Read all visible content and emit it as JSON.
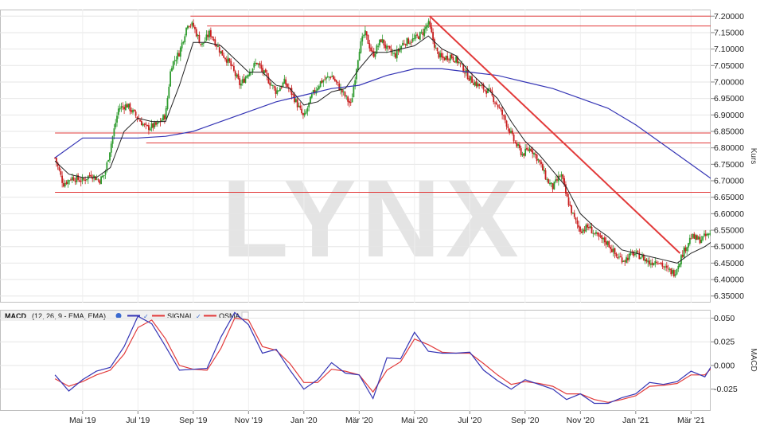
{
  "chart_data": [
    {
      "type": "candlestick",
      "watermark": "LYNX",
      "ylabel": "Kurs",
      "ylim": [
        6.33,
        7.22
      ],
      "yticks": [
        "7.20000",
        "7.15000",
        "7.10000",
        "7.05000",
        "7.00000",
        "6.95000",
        "6.90000",
        "6.85000",
        "6.80000",
        "6.75000",
        "6.70000",
        "6.65000",
        "6.60000",
        "6.55000",
        "6.50000",
        "6.45000",
        "6.40000",
        "6.35000"
      ],
      "x_months": [
        {
          "label": "Mai '19",
          "month": 1
        },
        {
          "label": "Jul '19",
          "month": 3
        },
        {
          "label": "Sep '19",
          "month": 5
        },
        {
          "label": "Nov '19",
          "month": 7
        },
        {
          "label": "Jan '20",
          "month": 9
        },
        {
          "label": "Mär '20",
          "month": 11
        },
        {
          "label": "Mai '20",
          "month": 13
        },
        {
          "label": "Jul '20",
          "month": 15
        },
        {
          "label": "Sep '20",
          "month": 17
        },
        {
          "label": "Nov '20",
          "month": 19
        },
        {
          "label": "Jan '21",
          "month": 21
        },
        {
          "label": "Mär '21",
          "month": 23
        }
      ],
      "colors": {
        "up": "#2e9b2e",
        "down": "#c81e1e",
        "ma_long": "#3535b5",
        "ma_short": "#222222",
        "level": "#e23a3a"
      },
      "price_path": [
        [
          0.0,
          6.77
        ],
        [
          0.3,
          6.69
        ],
        [
          0.6,
          6.71
        ],
        [
          1.0,
          6.7
        ],
        [
          1.3,
          6.72
        ],
        [
          1.6,
          6.7
        ],
        [
          1.8,
          6.72
        ],
        [
          2.0,
          6.8
        ],
        [
          2.3,
          6.92
        ],
        [
          2.6,
          6.93
        ],
        [
          3.0,
          6.89
        ],
        [
          3.3,
          6.86
        ],
        [
          3.7,
          6.87
        ],
        [
          4.0,
          6.9
        ],
        [
          4.2,
          7.05
        ],
        [
          4.5,
          7.09
        ],
        [
          4.8,
          7.18
        ],
        [
          5.0,
          7.17
        ],
        [
          5.3,
          7.11
        ],
        [
          5.6,
          7.15
        ],
        [
          6.0,
          7.09
        ],
        [
          6.3,
          7.06
        ],
        [
          6.7,
          6.99
        ],
        [
          7.0,
          7.03
        ],
        [
          7.3,
          7.06
        ],
        [
          7.6,
          7.02
        ],
        [
          8.0,
          6.97
        ],
        [
          8.3,
          7.0
        ],
        [
          8.6,
          6.96
        ],
        [
          9.0,
          6.89
        ],
        [
          9.3,
          6.96
        ],
        [
          9.6,
          7.0
        ],
        [
          10.0,
          7.02
        ],
        [
          10.3,
          6.98
        ],
        [
          10.7,
          6.93
        ],
        [
          11.0,
          7.1
        ],
        [
          11.2,
          7.15
        ],
        [
          11.5,
          7.08
        ],
        [
          11.8,
          7.13
        ],
        [
          12.0,
          7.1
        ],
        [
          12.3,
          7.08
        ],
        [
          12.6,
          7.12
        ],
        [
          13.0,
          7.13
        ],
        [
          13.3,
          7.15
        ],
        [
          13.5,
          7.18
        ],
        [
          13.8,
          7.09
        ],
        [
          14.0,
          7.07
        ],
        [
          14.3,
          7.08
        ],
        [
          14.6,
          7.06
        ],
        [
          15.0,
          7.01
        ],
        [
          15.3,
          6.99
        ],
        [
          15.7,
          6.97
        ],
        [
          16.0,
          6.93
        ],
        [
          16.3,
          6.88
        ],
        [
          16.6,
          6.82
        ],
        [
          16.9,
          6.78
        ],
        [
          17.2,
          6.8
        ],
        [
          17.5,
          6.76
        ],
        [
          17.8,
          6.7
        ],
        [
          18.0,
          6.68
        ],
        [
          18.3,
          6.72
        ],
        [
          18.5,
          6.65
        ],
        [
          18.8,
          6.58
        ],
        [
          19.0,
          6.55
        ],
        [
          19.3,
          6.56
        ],
        [
          19.6,
          6.53
        ],
        [
          20.0,
          6.51
        ],
        [
          20.3,
          6.47
        ],
        [
          20.6,
          6.46
        ],
        [
          20.9,
          6.48
        ],
        [
          21.2,
          6.47
        ],
        [
          21.5,
          6.45
        ],
        [
          21.8,
          6.46
        ],
        [
          22.1,
          6.43
        ],
        [
          22.4,
          6.42
        ],
        [
          22.7,
          6.48
        ],
        [
          23.0,
          6.53
        ],
        [
          23.3,
          6.52
        ],
        [
          23.7,
          6.54
        ],
        [
          24.0,
          6.57
        ]
      ],
      "ma_long_path": [
        [
          0.0,
          6.77
        ],
        [
          1.0,
          6.83
        ],
        [
          2.0,
          6.83
        ],
        [
          3.0,
          6.83
        ],
        [
          4.0,
          6.835
        ],
        [
          5.0,
          6.85
        ],
        [
          6.0,
          6.88
        ],
        [
          7.0,
          6.91
        ],
        [
          8.0,
          6.94
        ],
        [
          9.0,
          6.96
        ],
        [
          10.0,
          6.98
        ],
        [
          11.0,
          6.99
        ],
        [
          12.0,
          7.02
        ],
        [
          13.0,
          7.04
        ],
        [
          14.0,
          7.04
        ],
        [
          15.0,
          7.03
        ],
        [
          16.0,
          7.02
        ],
        [
          17.0,
          7.0
        ],
        [
          18.0,
          6.98
        ],
        [
          19.0,
          6.95
        ],
        [
          20.0,
          6.92
        ],
        [
          21.0,
          6.87
        ],
        [
          22.0,
          6.81
        ],
        [
          23.0,
          6.75
        ],
        [
          24.0,
          6.69
        ]
      ],
      "ma_short_path": [
        [
          0.0,
          6.76
        ],
        [
          0.5,
          6.72
        ],
        [
          1.0,
          6.71
        ],
        [
          1.5,
          6.71
        ],
        [
          2.0,
          6.74
        ],
        [
          2.5,
          6.85
        ],
        [
          3.0,
          6.89
        ],
        [
          3.5,
          6.88
        ],
        [
          4.0,
          6.88
        ],
        [
          4.5,
          6.99
        ],
        [
          5.0,
          7.12
        ],
        [
          5.5,
          7.12
        ],
        [
          6.0,
          7.11
        ],
        [
          6.5,
          7.07
        ],
        [
          7.0,
          7.03
        ],
        [
          7.5,
          7.03
        ],
        [
          8.0,
          6.99
        ],
        [
          8.5,
          6.98
        ],
        [
          9.0,
          6.93
        ],
        [
          9.5,
          6.94
        ],
        [
          10.0,
          6.97
        ],
        [
          10.5,
          6.98
        ],
        [
          11.0,
          7.04
        ],
        [
          11.5,
          7.09
        ],
        [
          12.0,
          7.09
        ],
        [
          12.5,
          7.1
        ],
        [
          13.0,
          7.11
        ],
        [
          13.5,
          7.14
        ],
        [
          14.0,
          7.1
        ],
        [
          14.5,
          7.08
        ],
        [
          15.0,
          7.03
        ],
        [
          15.5,
          6.99
        ],
        [
          16.0,
          6.95
        ],
        [
          16.5,
          6.88
        ],
        [
          17.0,
          6.82
        ],
        [
          17.5,
          6.78
        ],
        [
          18.0,
          6.73
        ],
        [
          18.5,
          6.68
        ],
        [
          19.0,
          6.6
        ],
        [
          19.5,
          6.56
        ],
        [
          20.0,
          6.53
        ],
        [
          20.5,
          6.49
        ],
        [
          21.0,
          6.48
        ],
        [
          21.5,
          6.47
        ],
        [
          22.0,
          6.46
        ],
        [
          22.5,
          6.45
        ],
        [
          23.0,
          6.48
        ],
        [
          23.5,
          6.5
        ],
        [
          24.0,
          6.53
        ]
      ],
      "horizontal_levels": [
        {
          "y": 7.2,
          "x_start": 4.9,
          "x_end": 26.5
        },
        {
          "y": 7.17,
          "x_start": 5.5,
          "x_end": 26.5
        },
        {
          "y": 6.845,
          "x_start": 0,
          "x_end": 26.5
        },
        {
          "y": 6.815,
          "x_start": 3.3,
          "x_end": 26.5
        },
        {
          "y": 6.665,
          "x_start": 0,
          "x_end": 26.5
        }
      ],
      "trendline": {
        "x_start": 13.55,
        "y_start": 7.2,
        "x_end": 22.6,
        "y_end": 6.48
      }
    },
    {
      "type": "line",
      "legend_label": "MACD",
      "legend_params": "(12, 26, 9 - EMA, EMA)",
      "series_labels": [
        "SIGNAL",
        "OSMA"
      ],
      "ylabel": "MACD",
      "ylim": [
        -0.048,
        0.058
      ],
      "yticks": [
        "0.050",
        "0.025",
        "0.000",
        "-0.025"
      ],
      "colors": {
        "macd": "#3535b5",
        "signal": "#e23a3a"
      },
      "macd_path": [
        [
          0.0,
          -0.01
        ],
        [
          0.5,
          -0.027
        ],
        [
          1.0,
          -0.015
        ],
        [
          1.5,
          -0.006
        ],
        [
          2.0,
          -0.002
        ],
        [
          2.5,
          0.02
        ],
        [
          3.0,
          0.052
        ],
        [
          3.5,
          0.044
        ],
        [
          4.0,
          0.02
        ],
        [
          4.5,
          -0.005
        ],
        [
          5.0,
          -0.004
        ],
        [
          5.5,
          -0.003
        ],
        [
          6.0,
          0.03
        ],
        [
          6.5,
          0.056
        ],
        [
          7.0,
          0.043
        ],
        [
          7.5,
          0.013
        ],
        [
          8.0,
          0.017
        ],
        [
          8.5,
          -0.005
        ],
        [
          9.0,
          -0.025
        ],
        [
          9.5,
          -0.015
        ],
        [
          10.0,
          0.003
        ],
        [
          10.5,
          -0.008
        ],
        [
          11.0,
          -0.01
        ],
        [
          11.5,
          -0.035
        ],
        [
          12.0,
          0.008
        ],
        [
          12.5,
          0.007
        ],
        [
          13.0,
          0.035
        ],
        [
          13.5,
          0.015
        ],
        [
          14.0,
          0.013
        ],
        [
          14.5,
          0.013
        ],
        [
          15.0,
          0.014
        ],
        [
          15.5,
          -0.005
        ],
        [
          16.0,
          -0.016
        ],
        [
          16.5,
          -0.025
        ],
        [
          17.0,
          -0.015
        ],
        [
          17.5,
          -0.02
        ],
        [
          18.0,
          -0.025
        ],
        [
          18.5,
          -0.036
        ],
        [
          19.0,
          -0.03
        ],
        [
          19.5,
          -0.04
        ],
        [
          20.0,
          -0.04
        ],
        [
          20.5,
          -0.034
        ],
        [
          21.0,
          -0.03
        ],
        [
          21.5,
          -0.018
        ],
        [
          22.0,
          -0.02
        ],
        [
          22.5,
          -0.017
        ],
        [
          23.0,
          -0.006
        ],
        [
          23.5,
          -0.012
        ],
        [
          24.0,
          0.012
        ],
        [
          24.5,
          0.016
        ],
        [
          25.0,
          0.019
        ]
      ],
      "signal_path": [
        [
          0.0,
          -0.014
        ],
        [
          0.5,
          -0.022
        ],
        [
          1.0,
          -0.017
        ],
        [
          1.5,
          -0.01
        ],
        [
          2.0,
          -0.005
        ],
        [
          2.5,
          0.012
        ],
        [
          3.0,
          0.04
        ],
        [
          3.5,
          0.048
        ],
        [
          4.0,
          0.028
        ],
        [
          4.5,
          0.0
        ],
        [
          5.0,
          -0.004
        ],
        [
          5.5,
          -0.005
        ],
        [
          6.0,
          0.018
        ],
        [
          6.5,
          0.05
        ],
        [
          7.0,
          0.048
        ],
        [
          7.5,
          0.02
        ],
        [
          8.0,
          0.016
        ],
        [
          8.5,
          0.002
        ],
        [
          9.0,
          -0.018
        ],
        [
          9.5,
          -0.018
        ],
        [
          10.0,
          -0.004
        ],
        [
          10.5,
          -0.006
        ],
        [
          11.0,
          -0.01
        ],
        [
          11.5,
          -0.028
        ],
        [
          12.0,
          -0.005
        ],
        [
          12.5,
          0.004
        ],
        [
          13.0,
          0.028
        ],
        [
          13.5,
          0.022
        ],
        [
          14.0,
          0.014
        ],
        [
          14.5,
          0.013
        ],
        [
          15.0,
          0.013
        ],
        [
          15.5,
          0.002
        ],
        [
          16.0,
          -0.01
        ],
        [
          16.5,
          -0.02
        ],
        [
          17.0,
          -0.017
        ],
        [
          17.5,
          -0.019
        ],
        [
          18.0,
          -0.022
        ],
        [
          18.5,
          -0.03
        ],
        [
          19.0,
          -0.03
        ],
        [
          19.5,
          -0.036
        ],
        [
          20.0,
          -0.039
        ],
        [
          20.5,
          -0.036
        ],
        [
          21.0,
          -0.032
        ],
        [
          21.5,
          -0.022
        ],
        [
          22.0,
          -0.021
        ],
        [
          22.5,
          -0.019
        ],
        [
          23.0,
          -0.01
        ],
        [
          23.5,
          -0.01
        ],
        [
          24.0,
          0.005
        ],
        [
          24.5,
          0.012
        ],
        [
          25.0,
          0.015
        ]
      ]
    }
  ]
}
